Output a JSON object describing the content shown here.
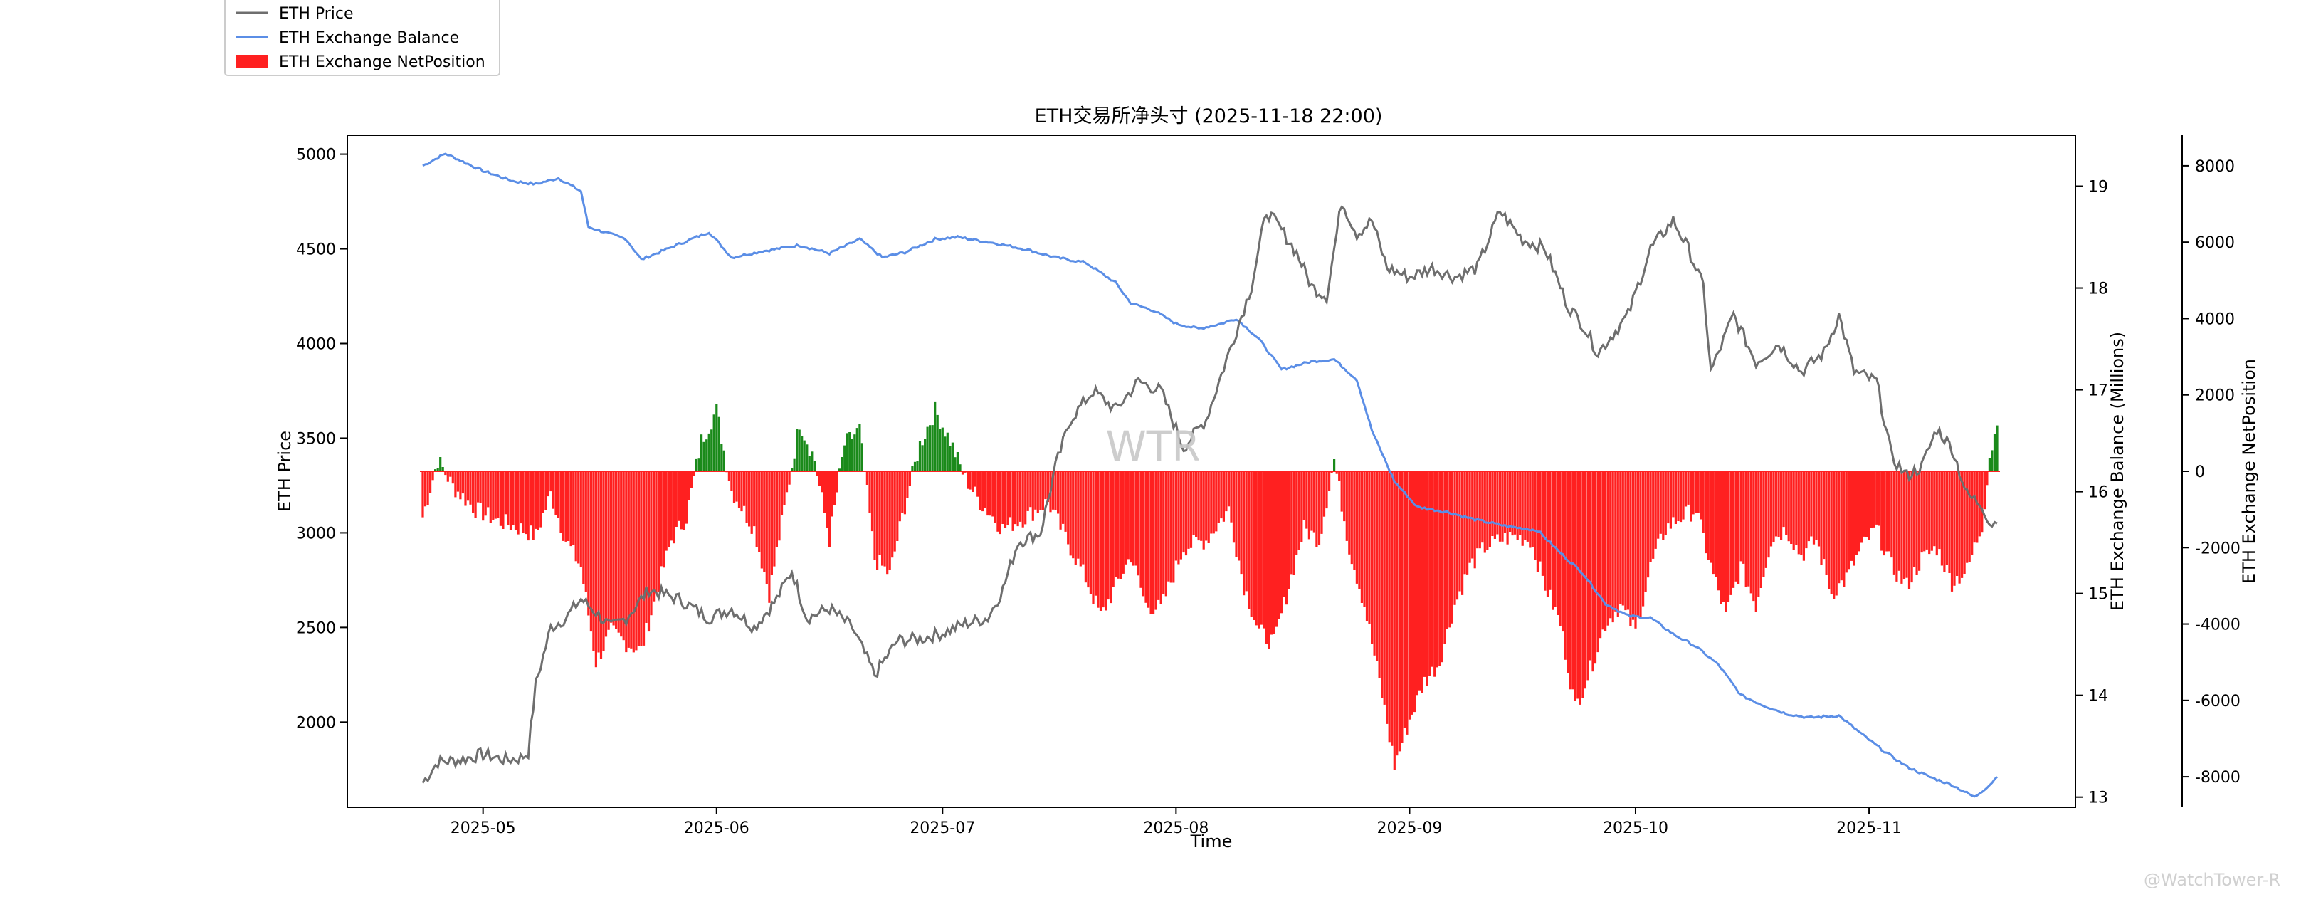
{
  "chart_data": {
    "type": "line",
    "title": "ETH交易所净头寸 (2025-11-18 22:00)",
    "xlabel": "Time",
    "ylabel_left": "ETH Price",
    "ylabel_right1": "ETH Exchange Balance (Millions)",
    "ylabel_right2": "ETH Exchange NetPosition",
    "x_range": [
      "2025-04-23",
      "2025-11-18"
    ],
    "x_ticks": [
      "2025-05",
      "2025-06",
      "2025-07",
      "2025-08",
      "2025-09",
      "2025-10",
      "2025-11"
    ],
    "ylim_left": [
      1550,
      5100
    ],
    "yticks_left": [
      "2000",
      "2500",
      "3000",
      "3500",
      "4000",
      "4500",
      "5000"
    ],
    "ylim_right1": [
      12.9,
      19.5
    ],
    "yticks_right1": [
      "13",
      "14",
      "15",
      "16",
      "17",
      "18",
      "19"
    ],
    "ylim_right2": [
      -8800,
      8800
    ],
    "yticks_right2": [
      "-8000",
      "-6000",
      "-4000",
      "-2000",
      "0",
      "2000",
      "4000",
      "6000",
      "8000"
    ],
    "legend_placement": "top-left, outside axes",
    "grid": false,
    "watermark": "WTR",
    "credit": "@WatchTower-R",
    "legend": [
      "ETH Price",
      "ETH Exchange Balance",
      "ETH Exchange NetPosition"
    ],
    "series": [
      {
        "name": "ETH Price",
        "axis": "left",
        "style": "line",
        "color": "#6e6e6e",
        "points": [
          [
            "2025-04-23",
            1680
          ],
          [
            "2025-04-25",
            1790
          ],
          [
            "2025-04-28",
            1800
          ],
          [
            "2025-05-01",
            1830
          ],
          [
            "2025-05-04",
            1800
          ],
          [
            "2025-05-06",
            1810
          ],
          [
            "2025-05-07",
            1840
          ],
          [
            "2025-05-08",
            2200
          ],
          [
            "2025-05-10",
            2500
          ],
          [
            "2025-05-12",
            2550
          ],
          [
            "2025-05-14",
            2650
          ],
          [
            "2025-05-16",
            2580
          ],
          [
            "2025-05-18",
            2500
          ],
          [
            "2025-05-20",
            2550
          ],
          [
            "2025-05-23",
            2700
          ],
          [
            "2025-05-27",
            2650
          ],
          [
            "2025-05-31",
            2550
          ],
          [
            "2025-06-03",
            2600
          ],
          [
            "2025-06-06",
            2500
          ],
          [
            "2025-06-09",
            2650
          ],
          [
            "2025-06-11",
            2800
          ],
          [
            "2025-06-13",
            2550
          ],
          [
            "2025-06-16",
            2600
          ],
          [
            "2025-06-19",
            2500
          ],
          [
            "2025-06-22",
            2250
          ],
          [
            "2025-06-25",
            2430
          ],
          [
            "2025-06-28",
            2440
          ],
          [
            "2025-07-01",
            2470
          ],
          [
            "2025-07-04",
            2520
          ],
          [
            "2025-07-07",
            2550
          ],
          [
            "2025-07-09",
            2700
          ],
          [
            "2025-07-11",
            2950
          ],
          [
            "2025-07-14",
            3000
          ],
          [
            "2025-07-16",
            3350
          ],
          [
            "2025-07-18",
            3600
          ],
          [
            "2025-07-21",
            3750
          ],
          [
            "2025-07-24",
            3650
          ],
          [
            "2025-07-27",
            3800
          ],
          [
            "2025-07-30",
            3750
          ],
          [
            "2025-08-02",
            3450
          ],
          [
            "2025-08-05",
            3600
          ],
          [
            "2025-08-08",
            3950
          ],
          [
            "2025-08-11",
            4300
          ],
          [
            "2025-08-13",
            4700
          ],
          [
            "2025-08-15",
            4600
          ],
          [
            "2025-08-17",
            4480
          ],
          [
            "2025-08-19",
            4300
          ],
          [
            "2025-08-21",
            4250
          ],
          [
            "2025-08-23",
            4750
          ],
          [
            "2025-08-25",
            4580
          ],
          [
            "2025-08-27",
            4650
          ],
          [
            "2025-08-29",
            4400
          ],
          [
            "2025-09-01",
            4350
          ],
          [
            "2025-09-04",
            4400
          ],
          [
            "2025-09-07",
            4350
          ],
          [
            "2025-09-10",
            4400
          ],
          [
            "2025-09-13",
            4700
          ],
          [
            "2025-09-16",
            4550
          ],
          [
            "2025-09-19",
            4500
          ],
          [
            "2025-09-22",
            4200
          ],
          [
            "2025-09-24",
            4100
          ],
          [
            "2025-09-26",
            3950
          ],
          [
            "2025-09-28",
            4050
          ],
          [
            "2025-09-30",
            4150
          ],
          [
            "2025-10-03",
            4500
          ],
          [
            "2025-10-06",
            4650
          ],
          [
            "2025-10-08",
            4500
          ],
          [
            "2025-10-10",
            4300
          ],
          [
            "2025-10-11",
            3850
          ],
          [
            "2025-10-14",
            4150
          ],
          [
            "2025-10-17",
            3900
          ],
          [
            "2025-10-20",
            4000
          ],
          [
            "2025-10-23",
            3850
          ],
          [
            "2025-10-26",
            3950
          ],
          [
            "2025-10-28",
            4150
          ],
          [
            "2025-10-30",
            3850
          ],
          [
            "2025-11-02",
            3800
          ],
          [
            "2025-11-04",
            3400
          ],
          [
            "2025-11-06",
            3300
          ],
          [
            "2025-11-08",
            3350
          ],
          [
            "2025-11-10",
            3550
          ],
          [
            "2025-11-12",
            3450
          ],
          [
            "2025-11-14",
            3200
          ],
          [
            "2025-11-16",
            3150
          ],
          [
            "2025-11-17",
            3050
          ],
          [
            "2025-11-18",
            3050
          ]
        ]
      },
      {
        "name": "ETH Exchange Balance",
        "axis": "right1",
        "style": "line",
        "color": "#5b8ee6",
        "points": [
          [
            "2025-04-23",
            19.2
          ],
          [
            "2025-04-26",
            19.32
          ],
          [
            "2025-05-01",
            19.15
          ],
          [
            "2025-05-05",
            19.05
          ],
          [
            "2025-05-08",
            19.02
          ],
          [
            "2025-05-11",
            19.08
          ],
          [
            "2025-05-14",
            18.95
          ],
          [
            "2025-05-15",
            18.6
          ],
          [
            "2025-05-20",
            18.48
          ],
          [
            "2025-05-22",
            18.28
          ],
          [
            "2025-05-26",
            18.4
          ],
          [
            "2025-05-31",
            18.55
          ],
          [
            "2025-06-03",
            18.3
          ],
          [
            "2025-06-07",
            18.36
          ],
          [
            "2025-06-12",
            18.42
          ],
          [
            "2025-06-16",
            18.34
          ],
          [
            "2025-06-20",
            18.48
          ],
          [
            "2025-06-23",
            18.3
          ],
          [
            "2025-06-26",
            18.35
          ],
          [
            "2025-06-30",
            18.48
          ],
          [
            "2025-07-03",
            18.5
          ],
          [
            "2025-07-08",
            18.44
          ],
          [
            "2025-07-12",
            18.38
          ],
          [
            "2025-07-16",
            18.3
          ],
          [
            "2025-07-20",
            18.25
          ],
          [
            "2025-07-24",
            18.05
          ],
          [
            "2025-07-26",
            17.85
          ],
          [
            "2025-07-29",
            17.78
          ],
          [
            "2025-08-01",
            17.65
          ],
          [
            "2025-08-04",
            17.6
          ],
          [
            "2025-08-07",
            17.65
          ],
          [
            "2025-08-09",
            17.7
          ],
          [
            "2025-08-12",
            17.5
          ],
          [
            "2025-08-15",
            17.2
          ],
          [
            "2025-08-19",
            17.28
          ],
          [
            "2025-08-22",
            17.3
          ],
          [
            "2025-08-25",
            17.1
          ],
          [
            "2025-08-27",
            16.6
          ],
          [
            "2025-08-30",
            16.1
          ],
          [
            "2025-09-02",
            15.85
          ],
          [
            "2025-09-06",
            15.8
          ],
          [
            "2025-09-10",
            15.72
          ],
          [
            "2025-09-14",
            15.66
          ],
          [
            "2025-09-18",
            15.62
          ],
          [
            "2025-09-21",
            15.4
          ],
          [
            "2025-09-24",
            15.2
          ],
          [
            "2025-09-27",
            14.9
          ],
          [
            "2025-09-30",
            14.78
          ],
          [
            "2025-10-03",
            14.76
          ],
          [
            "2025-10-06",
            14.6
          ],
          [
            "2025-10-09",
            14.48
          ],
          [
            "2025-10-12",
            14.3
          ],
          [
            "2025-10-15",
            14.0
          ],
          [
            "2025-10-18",
            13.9
          ],
          [
            "2025-10-21",
            13.82
          ],
          [
            "2025-10-24",
            13.78
          ],
          [
            "2025-10-28",
            13.8
          ],
          [
            "2025-10-31",
            13.62
          ],
          [
            "2025-11-03",
            13.45
          ],
          [
            "2025-11-06",
            13.3
          ],
          [
            "2025-11-09",
            13.2
          ],
          [
            "2025-11-12",
            13.12
          ],
          [
            "2025-11-15",
            13.0
          ],
          [
            "2025-11-17",
            13.12
          ],
          [
            "2025-11-18",
            13.2
          ]
        ]
      },
      {
        "name": "ETH Exchange NetPosition",
        "axis": "right2",
        "style": "bars (red below 0, green above 0)",
        "color_negative": "#ff2020",
        "color_positive": "#1a8a1a",
        "points": [
          [
            "2025-04-23",
            -1200
          ],
          [
            "2025-04-25",
            300
          ],
          [
            "2025-04-27",
            -400
          ],
          [
            "2025-04-30",
            -1000
          ],
          [
            "2025-05-03",
            -1300
          ],
          [
            "2025-05-06",
            -1500
          ],
          [
            "2025-05-08",
            -1700
          ],
          [
            "2025-05-10",
            -600
          ],
          [
            "2025-05-12",
            -1800
          ],
          [
            "2025-05-14",
            -2500
          ],
          [
            "2025-05-16",
            -5000
          ],
          [
            "2025-05-18",
            -4200
          ],
          [
            "2025-05-20",
            -4500
          ],
          [
            "2025-05-22",
            -4700
          ],
          [
            "2025-05-24",
            -3200
          ],
          [
            "2025-05-26",
            -1800
          ],
          [
            "2025-05-28",
            -1200
          ],
          [
            "2025-05-30",
            800
          ],
          [
            "2025-06-01",
            1600
          ],
          [
            "2025-06-03",
            -500
          ],
          [
            "2025-06-06",
            -1500
          ],
          [
            "2025-06-08",
            -3200
          ],
          [
            "2025-06-10",
            -1000
          ],
          [
            "2025-06-12",
            1300
          ],
          [
            "2025-06-14",
            300
          ],
          [
            "2025-06-16",
            -1800
          ],
          [
            "2025-06-18",
            700
          ],
          [
            "2025-06-20",
            1100
          ],
          [
            "2025-06-22",
            -2300
          ],
          [
            "2025-06-24",
            -2700
          ],
          [
            "2025-06-26",
            -900
          ],
          [
            "2025-06-28",
            700
          ],
          [
            "2025-06-30",
            1600
          ],
          [
            "2025-07-02",
            800
          ],
          [
            "2025-07-04",
            -200
          ],
          [
            "2025-07-06",
            -800
          ],
          [
            "2025-07-09",
            -1500
          ],
          [
            "2025-07-12",
            -1200
          ],
          [
            "2025-07-15",
            -800
          ],
          [
            "2025-07-18",
            -2000
          ],
          [
            "2025-07-20",
            -2800
          ],
          [
            "2025-07-22",
            -3800
          ],
          [
            "2025-07-24",
            -3000
          ],
          [
            "2025-07-26",
            -2200
          ],
          [
            "2025-07-28",
            -3500
          ],
          [
            "2025-07-30",
            -3600
          ],
          [
            "2025-08-02",
            -2000
          ],
          [
            "2025-08-05",
            -1800
          ],
          [
            "2025-08-08",
            -1000
          ],
          [
            "2025-08-10",
            -3000
          ],
          [
            "2025-08-12",
            -4200
          ],
          [
            "2025-08-14",
            -4500
          ],
          [
            "2025-08-16",
            -3000
          ],
          [
            "2025-08-18",
            -1500
          ],
          [
            "2025-08-20",
            -1800
          ],
          [
            "2025-08-22",
            300
          ],
          [
            "2025-08-24",
            -2000
          ],
          [
            "2025-08-26",
            -3500
          ],
          [
            "2025-08-28",
            -5500
          ],
          [
            "2025-08-30",
            -7700
          ],
          [
            "2025-09-01",
            -6500
          ],
          [
            "2025-09-03",
            -5500
          ],
          [
            "2025-09-05",
            -5000
          ],
          [
            "2025-09-07",
            -3500
          ],
          [
            "2025-09-09",
            -2500
          ],
          [
            "2025-09-11",
            -2000
          ],
          [
            "2025-09-13",
            -1800
          ],
          [
            "2025-09-15",
            -1700
          ],
          [
            "2025-09-17",
            -1800
          ],
          [
            "2025-09-19",
            -3000
          ],
          [
            "2025-09-21",
            -4000
          ],
          [
            "2025-09-23",
            -6200
          ],
          [
            "2025-09-25",
            -5200
          ],
          [
            "2025-09-27",
            -4000
          ],
          [
            "2025-09-29",
            -3500
          ],
          [
            "2025-10-01",
            -4200
          ],
          [
            "2025-10-03",
            -2500
          ],
          [
            "2025-10-05",
            -1500
          ],
          [
            "2025-10-07",
            -1200
          ],
          [
            "2025-10-09",
            -1000
          ],
          [
            "2025-10-11",
            -2500
          ],
          [
            "2025-10-13",
            -3800
          ],
          [
            "2025-10-15",
            -2500
          ],
          [
            "2025-10-17",
            -3500
          ],
          [
            "2025-10-19",
            -1800
          ],
          [
            "2025-10-21",
            -1500
          ],
          [
            "2025-10-23",
            -2200
          ],
          [
            "2025-10-25",
            -1800
          ],
          [
            "2025-10-27",
            -3200
          ],
          [
            "2025-10-29",
            -2800
          ],
          [
            "2025-10-31",
            -2000
          ],
          [
            "2025-11-02",
            -1500
          ],
          [
            "2025-11-04",
            -2500
          ],
          [
            "2025-11-06",
            -3000
          ],
          [
            "2025-11-08",
            -2300
          ],
          [
            "2025-11-10",
            -2000
          ],
          [
            "2025-11-12",
            -2900
          ],
          [
            "2025-11-14",
            -2600
          ],
          [
            "2025-11-16",
            -1400
          ],
          [
            "2025-11-17",
            400
          ],
          [
            "2025-11-18",
            1200
          ]
        ]
      }
    ]
  }
}
